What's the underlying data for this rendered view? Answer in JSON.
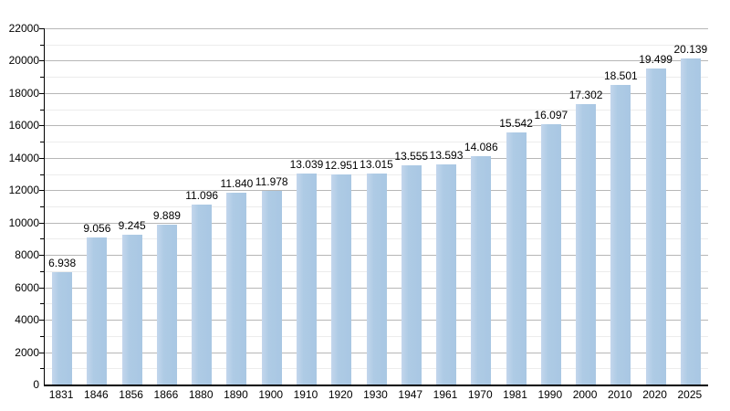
{
  "chart_data": {
    "type": "bar",
    "title": "",
    "xlabel": "",
    "ylabel": "",
    "categories": [
      "1831",
      "1846",
      "1856",
      "1866",
      "1880",
      "1890",
      "1900",
      "1910",
      "1920",
      "1930",
      "1947",
      "1961",
      "1970",
      "1981",
      "1990",
      "2000",
      "2010",
      "2020",
      "2025"
    ],
    "values": [
      6938,
      9056,
      9245,
      9889,
      11096,
      11840,
      11978,
      13039,
      12951,
      13015,
      13555,
      13593,
      14086,
      15542,
      16097,
      17302,
      18501,
      19499,
      20139
    ],
    "value_labels": [
      "6.938",
      "9.056",
      "9.245",
      "9.889",
      "11.096",
      "11.840",
      "11.978",
      "13.039",
      "12.951",
      "13.015",
      "13.555",
      "13.593",
      "14.086",
      "15.542",
      "16.097",
      "17.302",
      "18.501",
      "19.499",
      "20.139"
    ],
    "ylim": [
      0,
      22000
    ],
    "y_major_step": 2000,
    "y_minor_step": 1000,
    "y_tick_labels": [
      "0",
      "2000",
      "4000",
      "6000",
      "8000",
      "10000",
      "12000",
      "14000",
      "16000",
      "18000",
      "20000",
      "22000"
    ],
    "grid": true,
    "legend": false,
    "colors": {
      "bar": "#aecbe5",
      "major_grid": "#b7b7b7",
      "minor_grid": "#ececec",
      "axis": "#000000",
      "background": "#ffffff",
      "text": "#000000"
    }
  }
}
